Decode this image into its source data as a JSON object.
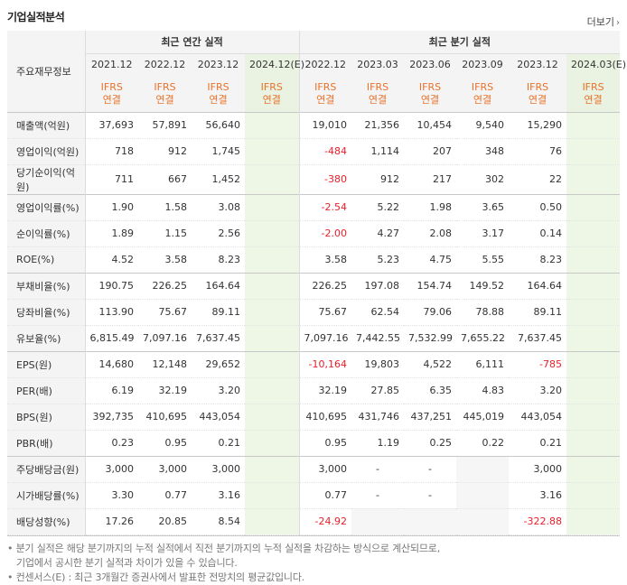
{
  "title": "기업실적분석",
  "more": "더보기",
  "header": {
    "row_label": "주요재무정보",
    "annual_group": "최근 연간 실적",
    "quarter_group": "최근 분기 실적",
    "annual_periods": [
      "2021.12",
      "2022.12",
      "2023.12",
      "2024.12(E)"
    ],
    "quarter_periods": [
      "2022.12",
      "2023.03",
      "2023.06",
      "2023.09",
      "2023.12",
      "2024.03(E)"
    ],
    "basis_top": "IFRS",
    "basis_bottom": "연결"
  },
  "rows": [
    {
      "label": "매출액(억원)",
      "annual": [
        "37,693",
        "57,891",
        "56,640",
        ""
      ],
      "quarter": [
        "19,010",
        "21,356",
        "10,454",
        "9,540",
        "15,290",
        ""
      ]
    },
    {
      "label": "영업이익(억원)",
      "annual": [
        "718",
        "912",
        "1,745",
        ""
      ],
      "quarter": [
        "-484",
        "1,114",
        "207",
        "348",
        "76",
        ""
      ]
    },
    {
      "label": "당기순이익(억원)",
      "annual": [
        "711",
        "667",
        "1,452",
        ""
      ],
      "quarter": [
        "-380",
        "912",
        "217",
        "302",
        "22",
        ""
      ]
    },
    {
      "label": "영업이익률(%)",
      "annual": [
        "1.90",
        "1.58",
        "3.08",
        ""
      ],
      "quarter": [
        "-2.54",
        "5.22",
        "1.98",
        "3.65",
        "0.50",
        ""
      ]
    },
    {
      "label": "순이익률(%)",
      "annual": [
        "1.89",
        "1.15",
        "2.56",
        ""
      ],
      "quarter": [
        "-2.00",
        "4.27",
        "2.08",
        "3.17",
        "0.14",
        ""
      ]
    },
    {
      "label": "ROE(%)",
      "annual": [
        "4.52",
        "3.58",
        "8.23",
        ""
      ],
      "quarter": [
        "3.58",
        "5.23",
        "4.75",
        "5.55",
        "8.23",
        ""
      ]
    },
    {
      "label": "부채비율(%)",
      "annual": [
        "190.75",
        "226.25",
        "164.64",
        ""
      ],
      "quarter": [
        "226.25",
        "197.08",
        "154.74",
        "149.52",
        "164.64",
        ""
      ]
    },
    {
      "label": "당좌비율(%)",
      "annual": [
        "113.90",
        "75.67",
        "89.11",
        ""
      ],
      "quarter": [
        "75.67",
        "62.54",
        "79.06",
        "78.88",
        "89.11",
        ""
      ]
    },
    {
      "label": "유보율(%)",
      "annual": [
        "6,815.49",
        "7,097.16",
        "7,637.45",
        ""
      ],
      "quarter": [
        "7,097.16",
        "7,442.55",
        "7,532.99",
        "7,655.22",
        "7,637.45",
        ""
      ]
    },
    {
      "label": "EPS(원)",
      "annual": [
        "14,680",
        "12,148",
        "29,652",
        ""
      ],
      "quarter": [
        "-10,164",
        "19,803",
        "4,522",
        "6,111",
        "-785",
        ""
      ]
    },
    {
      "label": "PER(배)",
      "annual": [
        "6.19",
        "32.19",
        "3.20",
        ""
      ],
      "quarter": [
        "32.19",
        "27.85",
        "6.35",
        "4.83",
        "3.20",
        ""
      ]
    },
    {
      "label": "BPS(원)",
      "annual": [
        "392,735",
        "410,695",
        "443,054",
        ""
      ],
      "quarter": [
        "410,695",
        "431,746",
        "437,251",
        "445,019",
        "443,054",
        ""
      ]
    },
    {
      "label": "PBR(배)",
      "annual": [
        "0.23",
        "0.95",
        "0.21",
        ""
      ],
      "quarter": [
        "0.95",
        "1.19",
        "0.25",
        "0.22",
        "0.21",
        ""
      ]
    },
    {
      "label": "주당배당금(원)",
      "annual": [
        "3,000",
        "3,000",
        "3,000",
        ""
      ],
      "quarter": [
        "3,000",
        "-",
        "-",
        "",
        "3,000",
        ""
      ]
    },
    {
      "label": "시가배당률(%)",
      "annual": [
        "3.30",
        "0.77",
        "3.16",
        ""
      ],
      "quarter": [
        "0.77",
        "-",
        "-",
        "",
        "3.16",
        ""
      ]
    },
    {
      "label": "배당성향(%)",
      "annual": [
        "17.26",
        "20.85",
        "8.54",
        ""
      ],
      "quarter": [
        "-24.92",
        "",
        "",
        "",
        "-322.88",
        ""
      ]
    }
  ],
  "notes": {
    "line1": "분기 실적은 해당 분기까지의 누적 실적에서 직전 분기까지의 누적 실적을 차감하는 방식으로 계산되므로,",
    "line2": "기업에서 공시한 분기 실적과 차이가 있을 수 있습니다.",
    "line3": "컨센서스(E) : 최근 3개월간 증권사에서 발표한 전망치의 평균값입니다."
  },
  "colors": {
    "ifrs": "#e8722a",
    "negative": "#e8202a",
    "estimate_bg": "#eef6e6"
  }
}
